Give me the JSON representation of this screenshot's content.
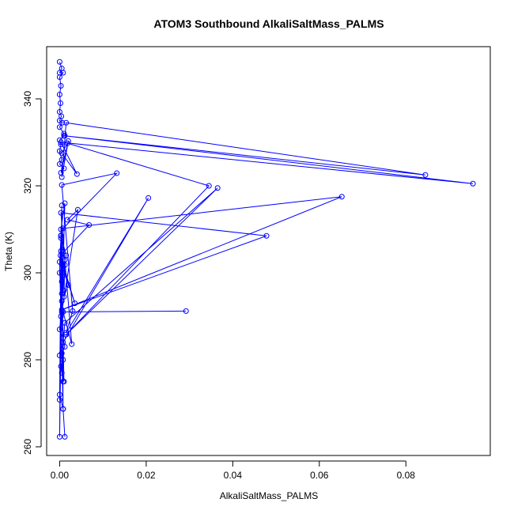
{
  "chart_data": {
    "type": "line",
    "markers": "open-circle",
    "color": "#0000ff",
    "title": "ATOM3 Southbound AlkaliSaltMass_PALMS",
    "xlabel": "AlkaliSaltMass_PALMS",
    "ylabel": "Theta (K)",
    "xlim": [
      -0.003,
      0.0995
    ],
    "ylim": [
      258,
      352
    ],
    "xticks": [
      0,
      0.02,
      0.04,
      0.06,
      0.08
    ],
    "xtick_labels": [
      "0.00",
      "0.02",
      "0.04",
      "0.06",
      "0.08"
    ],
    "yticks": [
      260,
      280,
      300,
      320,
      340
    ],
    "ytick_labels": [
      "260",
      "280",
      "300",
      "320",
      "340"
    ],
    "grid": false,
    "legend": "none",
    "series": [
      {
        "x": [
          0,
          0.0005,
          0,
          0.0008,
          0,
          0.0003,
          0,
          0.0002,
          0,
          0.0004,
          0,
          0.0006,
          0,
          0.001,
          0.001,
          0,
          0.0003,
          0,
          0.0005,
          0,
          0.001,
          0.0003,
          0.002,
          0.0005,
          0.0015,
          0.0845,
          0.0012,
          0.0955,
          0.0003,
          0.004,
          0.0005,
          0.0018,
          0.0345,
          0.0015,
          0.0365,
          0.0012,
          0.0008,
          0.0205,
          0.0015,
          0.003,
          0.0005,
          0.0132,
          0.0008,
          0.0652,
          0.0005,
          0.0478,
          0.0003,
          0.0028,
          0.0008,
          0.0292,
          0.0005,
          0.0042,
          0.0018,
          0.0068,
          0.0002,
          0.0035,
          0.0005,
          0.002,
          0.001,
          0.0012,
          0.0003,
          0.0015,
          0.0005,
          0.0012,
          0.001,
          0.0008,
          0.0005,
          0.0003,
          0,
          0.0008,
          0.0012,
          0.0005,
          0.0008,
          0.0003,
          0.0005,
          0.0008,
          0,
          0.001,
          0.0003,
          0.0012,
          0,
          0.0005,
          0.0008,
          0,
          0.0003,
          0,
          0.0005,
          0.0003,
          0,
          0.0005,
          0.0003,
          0,
          0.0008,
          0.0012
        ],
        "y": [
          348.5,
          347,
          346,
          346,
          345,
          343,
          341,
          339,
          337,
          336,
          335,
          334.5,
          333.5,
          332,
          331.5,
          330.5,
          329.5,
          328,
          326,
          325,
          324,
          323,
          330.3,
          322,
          334.5,
          322.5,
          331.5,
          320.5,
          330,
          322.7,
          327.5,
          329.8,
          320,
          285.8,
          319.5,
          288.5,
          284,
          317.2,
          286.2,
          291.2,
          320.2,
          322.9,
          310.2,
          317.5,
          291.5,
          308.5,
          313.8,
          283.6,
          291,
          291.2,
          291,
          314.5,
          312.2,
          311,
          304,
          293,
          302,
          297.2,
          294.5,
          303,
          308.6,
          304,
          300,
          301.8,
          299.5,
          296,
          293.5,
          290,
          287,
          285,
          283,
          281.5,
          280,
          278.5,
          277,
          275,
          281,
          275,
          310,
          316,
          270.8,
          315.5,
          268.7,
          272,
          305,
          262.3,
          298,
          308.5,
          300,
          295.2,
          308,
          302.5,
          268.7,
          262.3
        ]
      }
    ]
  }
}
